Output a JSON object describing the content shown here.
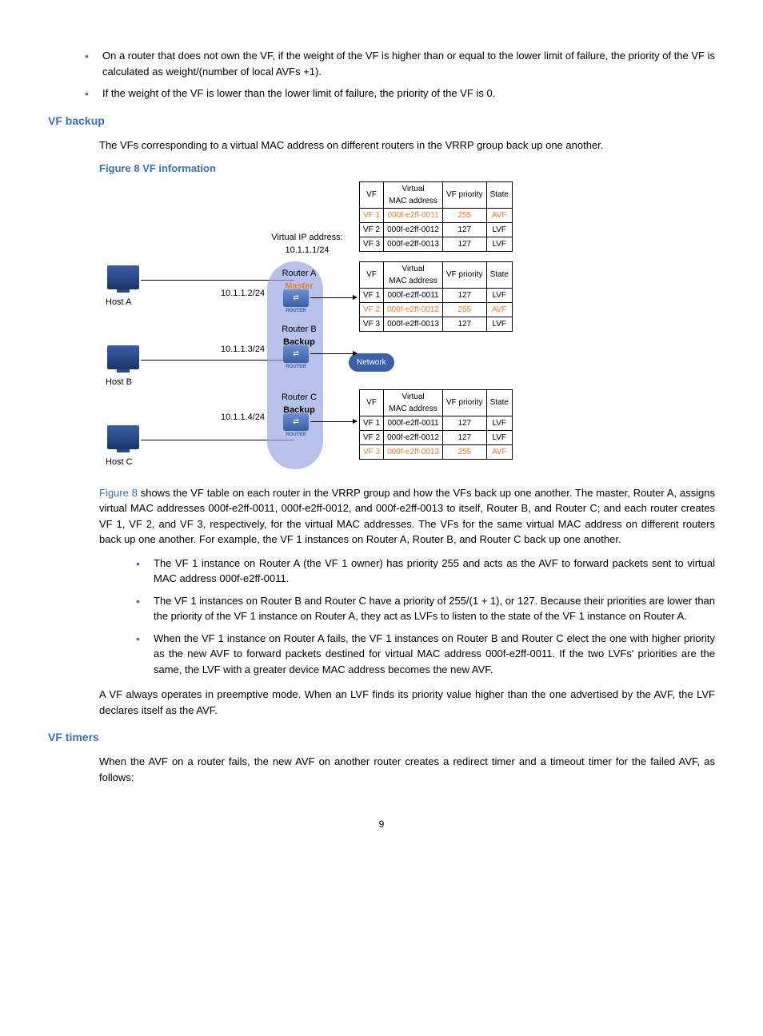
{
  "intro_bullets": [
    "On a router that does not own the VF, if the weight of the VF is higher than or equal to the lower limit of failure, the priority of the VF is calculated as weight/(number of local AVFs +1).",
    "If the weight of the VF is lower than the lower limit of failure, the priority of the VF is 0."
  ],
  "heading_backup": "VF backup",
  "para_backup": "The VFs corresponding to a virtual MAC address on different routers in the VRRP group back up one another.",
  "figure_caption": "Figure 8 VF information",
  "figure": {
    "hosts": [
      "Host A",
      "Host B",
      "Host C"
    ],
    "virtual_ip_label": "Virtual IP address:",
    "virtual_ip": "10.1.1.1/24",
    "routers": [
      {
        "name": "Router A",
        "role": "Master",
        "ip": "10.1.1.2/24"
      },
      {
        "name": "Router B",
        "role": "Backup",
        "ip": "10.1.1.3/24"
      },
      {
        "name": "Router C",
        "role": "Backup",
        "ip": "10.1.1.4/24"
      }
    ],
    "network_label": "Network",
    "table_headers": [
      "VF",
      "Virtual MAC address",
      "VF priority",
      "State"
    ],
    "tables": [
      {
        "avf_index": 0,
        "rows": [
          [
            "VF 1",
            "000f-e2ff-0011",
            "255",
            "AVF"
          ],
          [
            "VF 2",
            "000f-e2ff-0012",
            "127",
            "LVF"
          ],
          [
            "VF 3",
            "000f-e2ff-0013",
            "127",
            "LVF"
          ]
        ]
      },
      {
        "avf_index": 1,
        "rows": [
          [
            "VF 1",
            "000f-e2ff-0011",
            "127",
            "LVF"
          ],
          [
            "VF 2",
            "000f-e2ff-0012",
            "255",
            "AVF"
          ],
          [
            "VF 3",
            "000f-e2ff-0013",
            "127",
            "LVF"
          ]
        ]
      },
      {
        "avf_index": 2,
        "rows": [
          [
            "VF 1",
            "000f-e2ff-0011",
            "127",
            "LVF"
          ],
          [
            "VF 2",
            "000f-e2ff-0012",
            "127",
            "LVF"
          ],
          [
            "VF 3",
            "000f-e2ff-0013",
            "255",
            "AVF"
          ]
        ]
      }
    ]
  },
  "fig_link": "Figure 8",
  "para_after_fig": " shows the VF table on each router in the VRRP group and how the VFs back up one another. The master, Router A, assigns virtual MAC addresses 000f-e2ff-0011, 000f-e2ff-0012, and 000f-e2ff-0013 to itself, Router B, and Router C; and each router creates VF 1, VF 2, and VF 3, respectively, for the virtual MAC addresses. The VFs for the same virtual MAC address on different routers back up one another. For example, the VF 1 instances on Router A, Router B, and Router C back up one another.",
  "bullets_after": [
    "The VF 1 instance on Router A (the VF 1 owner) has priority 255 and acts as the AVF to forward packets sent to virtual MAC address 000f-e2ff-0011.",
    "The VF 1 instances on Router B and Router C have a priority of 255/(1 + 1), or 127. Because their priorities are lower than the priority of the VF 1 instance on Router A, they act as LVFs to listen to the state of the VF 1 instance on Router A.",
    "When the VF 1 instance on Router A fails, the VF 1 instances on Router B and Router C elect the one with higher priority as the new AVF to forward packets destined for virtual MAC address 000f-e2ff-0011. If the two LVFs' priorities are the same, the LVF with a greater device MAC address becomes the new AVF."
  ],
  "para_preempt": "A VF always operates in preemptive mode. When an LVF finds its priority value higher than the one advertised by the AVF, the LVF declares itself as the AVF.",
  "heading_timers": "VF timers",
  "para_timers": "When the AVF on a router fails, the new AVF on another router creates a redirect timer and a timeout timer for the failed AVF, as follows:",
  "page_number": "9"
}
